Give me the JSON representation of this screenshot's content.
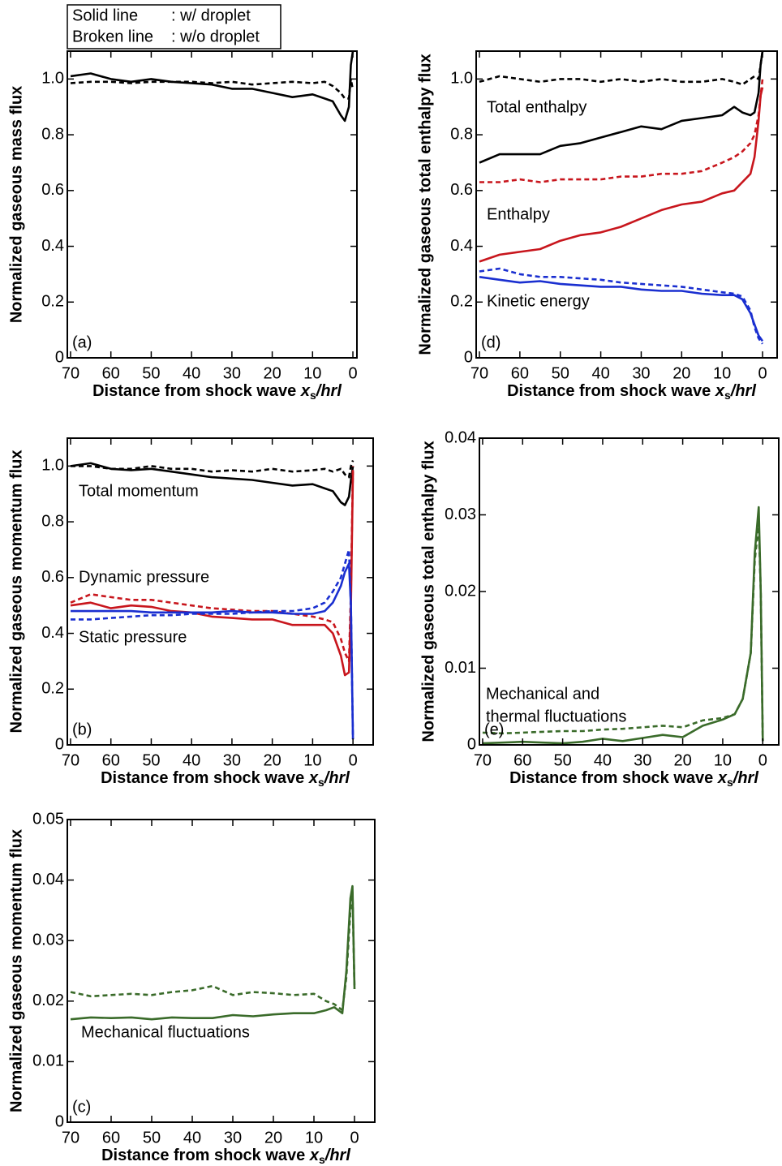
{
  "chart_data": [
    {
      "type": "line",
      "panel": "(a)",
      "ylabel": "Normalized gaseous mass flux",
      "xlabel": [
        "Distance from shock wave ",
        "x",
        "s",
        "/hrl"
      ],
      "legend": [
        [
          "Solid line",
          ": w/  droplet"
        ],
        [
          "Broken line",
          ": w/o droplet"
        ]
      ],
      "x": [
        70,
        65,
        60,
        55,
        50,
        45,
        40,
        35,
        30,
        25,
        20,
        15,
        10,
        7,
        5,
        3,
        2,
        1,
        0.5,
        0
      ],
      "xlim": [
        70.8,
        -1
      ],
      "xticks": [
        70,
        60,
        50,
        40,
        30,
        20,
        10,
        0
      ],
      "ylim": [
        0,
        1.1
      ],
      "yticks": [
        0,
        0.2,
        0.4,
        0.6,
        0.8,
        {
          "value": 1,
          "label": "1.0"
        }
      ],
      "series": [
        {
          "color": "#000000",
          "dash": false,
          "values": [
            1.01,
            1.02,
            1.0,
            0.99,
            1.0,
            0.99,
            0.985,
            0.98,
            0.965,
            0.965,
            0.95,
            0.935,
            0.945,
            0.93,
            0.92,
            0.87,
            0.85,
            0.9,
            1.05,
            1.1
          ]
        },
        {
          "color": "#000000",
          "dash": true,
          "values": [
            0.985,
            0.99,
            0.99,
            0.985,
            0.99,
            0.99,
            0.99,
            0.985,
            0.99,
            0.98,
            0.985,
            0.99,
            0.985,
            0.99,
            0.975,
            0.95,
            0.93,
            0.93,
            1.0,
            0.96
          ]
        }
      ],
      "annotations": []
    },
    {
      "type": "line",
      "panel": "(d)",
      "ylabel": "Normalized gaseous total enthalpy flux",
      "xlabel": [
        "Distance from shock wave ",
        "x",
        "s",
        "/hrl"
      ],
      "x": [
        70,
        65,
        60,
        55,
        50,
        45,
        40,
        35,
        30,
        25,
        20,
        15,
        10,
        7,
        5,
        3,
        2,
        1,
        0.5,
        0
      ],
      "xlim": [
        70.8,
        -3.6
      ],
      "xticks": [
        70,
        60,
        50,
        40,
        30,
        20,
        10,
        0
      ],
      "ylim": [
        0,
        1.1
      ],
      "yticks": [
        0,
        0.2,
        0.4,
        0.6,
        0.8,
        {
          "value": 1,
          "label": "1.0"
        }
      ],
      "series": [
        {
          "color": "#000000",
          "dash": false,
          "values": [
            0.7,
            0.73,
            0.73,
            0.73,
            0.76,
            0.77,
            0.79,
            0.81,
            0.83,
            0.82,
            0.85,
            0.86,
            0.87,
            0.9,
            0.88,
            0.87,
            0.88,
            0.95,
            1.05,
            1.1
          ]
        },
        {
          "color": "#000000",
          "dash": true,
          "values": [
            0.99,
            1.01,
            1.0,
            0.99,
            1.0,
            1.0,
            0.99,
            1.0,
            0.99,
            1.0,
            0.99,
            0.99,
            1.0,
            0.99,
            0.98,
            1.0,
            1.01,
            1.0,
            1.05,
            1.1
          ]
        },
        {
          "color": "#c8161d",
          "dash": false,
          "values": [
            0.345,
            0.37,
            0.38,
            0.39,
            0.42,
            0.44,
            0.45,
            0.47,
            0.5,
            0.53,
            0.55,
            0.56,
            0.59,
            0.6,
            0.63,
            0.66,
            0.72,
            0.85,
            0.94,
            0.97
          ]
        },
        {
          "color": "#c8161d",
          "dash": true,
          "values": [
            0.63,
            0.63,
            0.64,
            0.63,
            0.64,
            0.64,
            0.64,
            0.65,
            0.65,
            0.66,
            0.66,
            0.67,
            0.7,
            0.72,
            0.74,
            0.77,
            0.8,
            0.87,
            0.94,
            1.0
          ]
        },
        {
          "color": "#1a2fd0",
          "dash": false,
          "values": [
            0.29,
            0.28,
            0.27,
            0.275,
            0.265,
            0.26,
            0.255,
            0.255,
            0.245,
            0.24,
            0.24,
            0.23,
            0.225,
            0.225,
            0.21,
            0.16,
            0.12,
            0.08,
            0.07,
            0.06
          ]
        },
        {
          "color": "#1a2fd0",
          "dash": true,
          "values": [
            0.31,
            0.32,
            0.3,
            0.29,
            0.29,
            0.285,
            0.28,
            0.27,
            0.265,
            0.26,
            0.255,
            0.245,
            0.235,
            0.23,
            0.22,
            0.17,
            0.11,
            0.07,
            0.06,
            0.05
          ]
        }
      ],
      "annotations": [
        {
          "text": "Total enthalpy",
          "color": "#000000"
        },
        {
          "text": "Enthalpy",
          "color": "#c8161d"
        },
        {
          "text": "Kinetic energy",
          "color": "#1a2fd0"
        }
      ]
    },
    {
      "type": "line",
      "panel": "(b)",
      "ylabel": "Normalized gaseous momentum flux",
      "xlabel": [
        "Distance from shock wave ",
        "x",
        "s",
        "/hrl"
      ],
      "x": [
        70,
        65,
        60,
        55,
        50,
        45,
        40,
        35,
        30,
        25,
        20,
        15,
        10,
        7,
        5,
        3,
        2,
        1,
        0.5,
        0
      ],
      "xlim": [
        70.8,
        -5
      ],
      "xticks": [
        70,
        60,
        50,
        40,
        30,
        20,
        10,
        0
      ],
      "ylim": [
        0,
        1.1
      ],
      "yticks": [
        0,
        0.2,
        0.4,
        0.6,
        0.8,
        {
          "value": 1,
          "label": "1.0"
        }
      ],
      "series": [
        {
          "color": "#000000",
          "dash": false,
          "values": [
            1.0,
            1.01,
            0.99,
            0.985,
            0.99,
            0.98,
            0.97,
            0.96,
            0.955,
            0.95,
            0.94,
            0.93,
            0.935,
            0.92,
            0.91,
            0.87,
            0.86,
            0.89,
            0.95,
            1.0
          ]
        },
        {
          "color": "#000000",
          "dash": true,
          "values": [
            1.0,
            1.0,
            0.99,
            0.99,
            1.0,
            0.99,
            0.99,
            0.98,
            0.985,
            0.98,
            0.99,
            0.98,
            0.985,
            0.99,
            0.98,
            0.99,
            0.97,
            0.96,
            1.0,
            1.02
          ]
        },
        {
          "color": "#c8161d",
          "dash": false,
          "values": [
            0.5,
            0.51,
            0.49,
            0.5,
            0.495,
            0.48,
            0.475,
            0.46,
            0.455,
            0.45,
            0.45,
            0.43,
            0.43,
            0.43,
            0.4,
            0.32,
            0.25,
            0.26,
            0.5,
            0.98
          ]
        },
        {
          "color": "#c8161d",
          "dash": true,
          "values": [
            0.51,
            0.54,
            0.53,
            0.52,
            0.52,
            0.51,
            0.5,
            0.49,
            0.485,
            0.48,
            0.48,
            0.47,
            0.46,
            0.45,
            0.44,
            0.38,
            0.33,
            0.3,
            0.55,
            1.0
          ]
        },
        {
          "color": "#1a2fd0",
          "dash": false,
          "values": [
            0.48,
            0.48,
            0.48,
            0.48,
            0.475,
            0.475,
            0.475,
            0.475,
            0.48,
            0.475,
            0.475,
            0.47,
            0.47,
            0.48,
            0.51,
            0.57,
            0.62,
            0.65,
            0.5,
            0.02
          ]
        },
        {
          "color": "#1a2fd0",
          "dash": true,
          "values": [
            0.45,
            0.45,
            0.455,
            0.46,
            0.465,
            0.465,
            0.47,
            0.47,
            0.47,
            0.475,
            0.48,
            0.48,
            0.49,
            0.51,
            0.55,
            0.6,
            0.65,
            0.7,
            0.5,
            0.02
          ]
        }
      ],
      "annotations": [
        {
          "text": "Total momentum",
          "color": "#000000"
        },
        {
          "text": "Dynamic pressure",
          "color": "#c8161d"
        },
        {
          "text": "Static pressure",
          "color": "#1a2fd0"
        }
      ]
    },
    {
      "type": "line",
      "panel": "(e)",
      "ylabel": "Normalized gaseous total enthalpy flux",
      "xlabel": [
        "Distance from shock wave ",
        "x",
        "s",
        "/hrl"
      ],
      "x": [
        70,
        65,
        60,
        55,
        50,
        45,
        40,
        35,
        30,
        25,
        20,
        15,
        10,
        7,
        5,
        3,
        2,
        1,
        0.5,
        0
      ],
      "xlim": [
        70.8,
        -4
      ],
      "xticks": [
        70,
        60,
        50,
        40,
        30,
        20,
        10,
        0
      ],
      "ylim": [
        0,
        0.04
      ],
      "yticks": [
        0,
        0.01,
        0.02,
        0.03,
        0.04
      ],
      "series": [
        {
          "color": "#3a6b2a",
          "dash": false,
          "values": [
            0.0002,
            0.0003,
            0.0004,
            0.0003,
            0.0002,
            0.0004,
            0.0008,
            0.0005,
            0.0009,
            0.0013,
            0.001,
            0.0025,
            0.0033,
            0.004,
            0.006,
            0.012,
            0.025,
            0.031,
            0.02,
            0.0005
          ]
        },
        {
          "color": "#3a6b2a",
          "dash": true,
          "values": [
            0.0016,
            0.0015,
            0.0016,
            0.0017,
            0.0018,
            0.0018,
            0.002,
            0.0021,
            0.0023,
            0.0025,
            0.0023,
            0.0032,
            0.0035,
            0.004,
            0.006,
            0.012,
            0.024,
            0.029,
            0.02,
            0.0005
          ]
        }
      ],
      "annotations": [
        {
          "text": "Mechanical and",
          "color": "#3a6b2a"
        },
        {
          "text": "thermal fluctuations",
          "color": "#3a6b2a"
        }
      ]
    },
    {
      "type": "line",
      "panel": "(c)",
      "ylabel": "Normalized gaseous momentum flux",
      "xlabel": [
        "Distance from shock wave ",
        "x",
        "s",
        "/hrl"
      ],
      "x": [
        70,
        65,
        60,
        55,
        50,
        45,
        40,
        35,
        30,
        25,
        20,
        15,
        10,
        7,
        5,
        3,
        2,
        1,
        0.5,
        0
      ],
      "xlim": [
        70.8,
        -5
      ],
      "xticks": [
        70,
        60,
        50,
        40,
        30,
        20,
        10,
        0
      ],
      "ylim": [
        0,
        0.05
      ],
      "yticks": [
        0,
        0.01,
        0.02,
        0.03,
        0.04,
        0.05
      ],
      "series": [
        {
          "color": "#3a6b2a",
          "dash": false,
          "values": [
            0.017,
            0.0173,
            0.0172,
            0.0173,
            0.017,
            0.0173,
            0.0172,
            0.0172,
            0.0177,
            0.0175,
            0.0178,
            0.018,
            0.018,
            0.0185,
            0.019,
            0.018,
            0.025,
            0.037,
            0.039,
            0.022
          ]
        },
        {
          "color": "#3a6b2a",
          "dash": true,
          "values": [
            0.0215,
            0.0208,
            0.021,
            0.0212,
            0.021,
            0.0215,
            0.0218,
            0.0225,
            0.021,
            0.0215,
            0.0213,
            0.021,
            0.0212,
            0.02,
            0.0195,
            0.0185,
            0.024,
            0.035,
            0.038,
            0.022
          ]
        }
      ],
      "annotations": [
        {
          "text": "Mechanical fluctuations",
          "color": "#3a6b2a"
        }
      ]
    }
  ]
}
